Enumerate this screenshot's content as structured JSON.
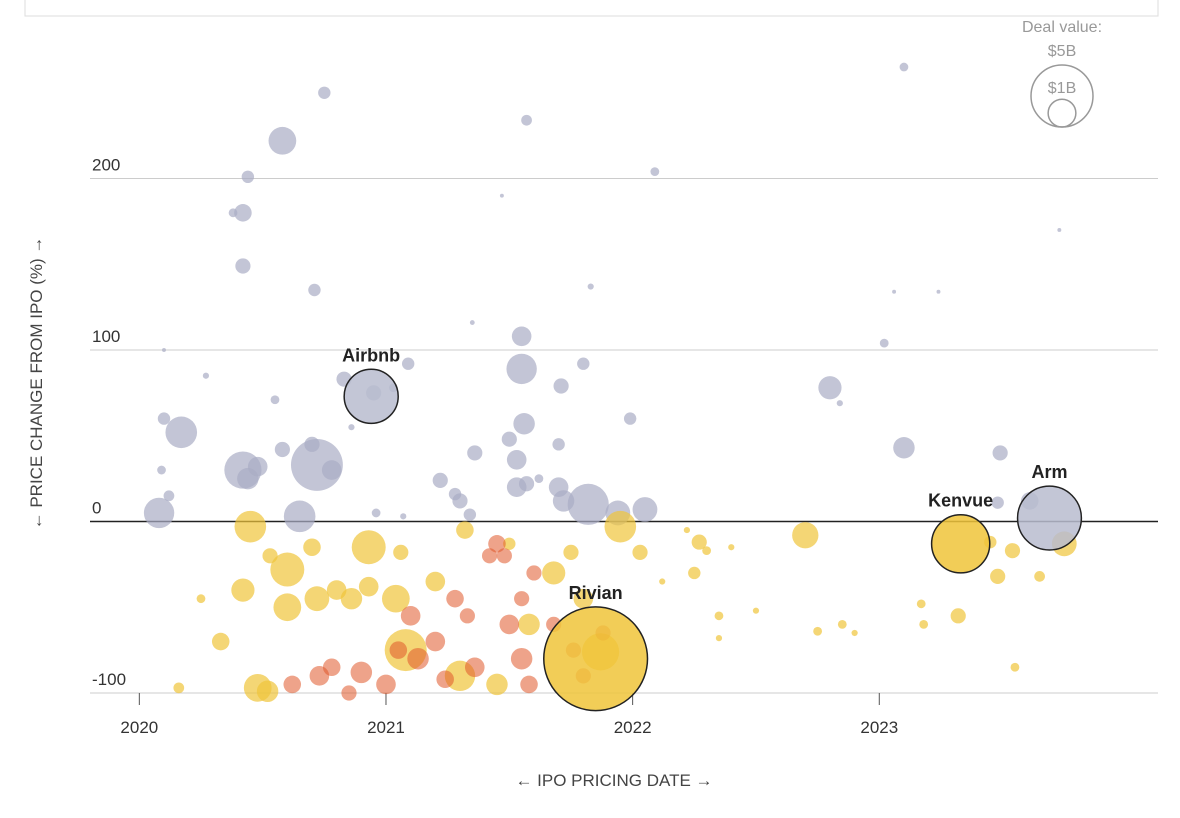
{
  "chart_data": {
    "type": "scatter",
    "x_label": "← IPO PRICING DATE →",
    "y_label": "← PRICE CHANGE FROM IPO (%) →",
    "xlim": [
      2019.8,
      2024.13
    ],
    "ylim": [
      -100,
      295
    ],
    "xticks": [
      2020,
      2021,
      2022,
      2023
    ],
    "yticks": [
      -100,
      0,
      100,
      200
    ],
    "grid": true,
    "series": [
      {
        "color": "#a9adc4",
        "x": [
          2020.08,
          2020.1,
          2020.09,
          2020.12,
          2020.17,
          2020.1,
          2020.27,
          2020.38,
          2020.42,
          2020.44,
          2020.42,
          2020.42,
          2020.44,
          2020.48,
          2020.55,
          2020.58,
          2020.58,
          2020.65,
          2020.71,
          2020.75,
          2020.72,
          2020.78,
          2020.7,
          2020.83,
          2020.86,
          2020.95,
          2021.03,
          2021.09,
          2020.96,
          2021.07,
          2021.22,
          2021.28,
          2021.3,
          2021.34,
          2021.35,
          2021.36,
          2021.47,
          2021.5,
          2021.53,
          2021.55,
          2021.55,
          2021.56,
          2021.57,
          2021.53,
          2021.57,
          2021.62,
          2021.7,
          2021.71,
          2021.7,
          2021.72,
          2021.8,
          2021.82,
          2021.83,
          2021.94,
          2022.05,
          2021.99,
          2022.09,
          2022.8,
          2022.84,
          2023.02,
          2023.1,
          2023.1,
          2023.06,
          2023.24,
          2023.49,
          2023.48,
          2023.61,
          2023.73
        ],
        "values": [
          5,
          60,
          30,
          15,
          52,
          100,
          85,
          180,
          180,
          201,
          149,
          30,
          25,
          32,
          71,
          222,
          42,
          3,
          135,
          250,
          33,
          30,
          45,
          83,
          55,
          75,
          78,
          92,
          5,
          3,
          24,
          16,
          12,
          4,
          116,
          40,
          190,
          48,
          36,
          108,
          89,
          57,
          234,
          20,
          22,
          25,
          45,
          79,
          20,
          12,
          92,
          10,
          137,
          5,
          7,
          60,
          204,
          78,
          69,
          104,
          265,
          43,
          134,
          134,
          40,
          11,
          12,
          170
        ],
        "sizes": [
          1.2,
          0.2,
          0.1,
          0.15,
          1.3,
          0.02,
          0.05,
          0.1,
          0.4,
          0.2,
          0.3,
          1.8,
          0.6,
          0.5,
          0.1,
          1.0,
          0.3,
          1.3,
          0.2,
          0.2,
          3.5,
          0.5,
          0.3,
          0.3,
          0.05,
          0.3,
          0.1,
          0.2,
          0.1,
          0.05,
          0.3,
          0.2,
          0.3,
          0.2,
          0.03,
          0.3,
          0.02,
          0.3,
          0.5,
          0.5,
          1.2,
          0.6,
          0.15,
          0.5,
          0.3,
          0.1,
          0.2,
          0.3,
          0.5,
          0.6,
          0.2,
          2.2,
          0.05,
          0.8,
          0.8,
          0.2,
          0.1,
          0.7,
          0.05,
          0.1,
          0.1,
          0.6,
          0.02,
          0.02,
          0.3,
          0.2,
          0.4,
          0.02
        ]
      },
      {
        "color": "#f0c43a",
        "x": [
          2020.45,
          2020.42,
          2020.48,
          2020.53,
          2020.6,
          2020.6,
          2020.72,
          2020.7,
          2020.8,
          2020.86,
          2020.93,
          2020.93,
          2021.04,
          2021.06,
          2021.08,
          2021.2,
          2021.3,
          2021.32,
          2021.45,
          2021.5,
          2021.68,
          2021.75,
          2021.8,
          2021.95,
          2022.03,
          2022.12,
          2022.22,
          2022.25,
          2022.27,
          2022.3,
          2022.35,
          2022.35,
          2022.4,
          2022.5,
          2022.7,
          2022.75,
          2022.85,
          2022.9,
          2023.17,
          2023.18,
          2023.32,
          2023.45,
          2023.48,
          2023.54,
          2023.65,
          2023.75,
          2023.55,
          2020.52,
          2021.58,
          2021.87,
          2020.16,
          2020.25,
          2020.33
        ],
        "values": [
          -3,
          -40,
          -97,
          -20,
          -28,
          -50,
          -45,
          -15,
          -40,
          -45,
          -15,
          -38,
          -45,
          -18,
          -75,
          -35,
          -90,
          -5,
          -95,
          -13,
          -30,
          -18,
          -45,
          -3,
          -18,
          -35,
          -5,
          -30,
          -12,
          -17,
          -55,
          -68,
          -15,
          -52,
          -8,
          -64,
          -60,
          -65,
          -48,
          -60,
          -55,
          -12,
          -32,
          -17,
          -32,
          -13,
          -85,
          -99,
          -60,
          -76,
          -97,
          -45,
          -70
        ],
        "sizes": [
          1.3,
          0.7,
          1.0,
          0.3,
          1.5,
          1.0,
          0.8,
          0.4,
          0.5,
          0.6,
          1.5,
          0.5,
          1.0,
          0.3,
          2.3,
          0.5,
          1.2,
          0.4,
          0.6,
          0.2,
          0.7,
          0.3,
          0.5,
          1.3,
          0.3,
          0.05,
          0.05,
          0.2,
          0.3,
          0.1,
          0.1,
          0.05,
          0.05,
          0.05,
          0.9,
          0.1,
          0.1,
          0.05,
          0.1,
          0.1,
          0.3,
          0.2,
          0.3,
          0.3,
          0.15,
          0.8,
          0.1,
          0.6,
          0.6,
          1.8,
          0.15,
          0.1,
          0.4
        ]
      },
      {
        "color": "#e0582a",
        "x": [
          2020.62,
          2020.73,
          2020.78,
          2020.9,
          2021.0,
          2021.05,
          2021.1,
          2021.13,
          2021.2,
          2021.24,
          2021.28,
          2021.33,
          2021.36,
          2021.42,
          2021.45,
          2021.48,
          2021.5,
          2021.55,
          2021.58,
          2021.55,
          2021.6,
          2021.68,
          2021.76,
          2021.8,
          2021.88,
          2020.85
        ],
        "values": [
          -95,
          -90,
          -85,
          -88,
          -95,
          -75,
          -55,
          -80,
          -70,
          -92,
          -45,
          -55,
          -85,
          -20,
          -13,
          -20,
          -60,
          -80,
          -95,
          -45,
          -30,
          -60,
          -75,
          -90,
          -65,
          -100
        ],
        "sizes": [
          0.4,
          0.5,
          0.4,
          0.6,
          0.5,
          0.4,
          0.5,
          0.6,
          0.5,
          0.4,
          0.4,
          0.3,
          0.5,
          0.3,
          0.4,
          0.3,
          0.5,
          0.6,
          0.4,
          0.3,
          0.3,
          0.3,
          0.3,
          0.3,
          0.3,
          0.3
        ]
      }
    ],
    "highlights": [
      {
        "label": "Airbnb",
        "x": 2020.94,
        "value": 73,
        "size": 3.8,
        "color": "#b8bccf"
      },
      {
        "label": "Rivian",
        "x": 2021.85,
        "value": -80,
        "size": 14,
        "color": "#f0c43a"
      },
      {
        "label": "Kenvue",
        "x": 2023.33,
        "value": -13,
        "size": 4.4,
        "color": "#f0c43a"
      },
      {
        "label": "Arm",
        "x": 2023.69,
        "value": 2,
        "size": 5.3,
        "color": "#b8bccf"
      }
    ],
    "size_legend": {
      "title": "Deal value:",
      "items": [
        {
          "value": 5,
          "label": "$5B"
        },
        {
          "value": 1,
          "label": "$1B"
        }
      ]
    }
  }
}
